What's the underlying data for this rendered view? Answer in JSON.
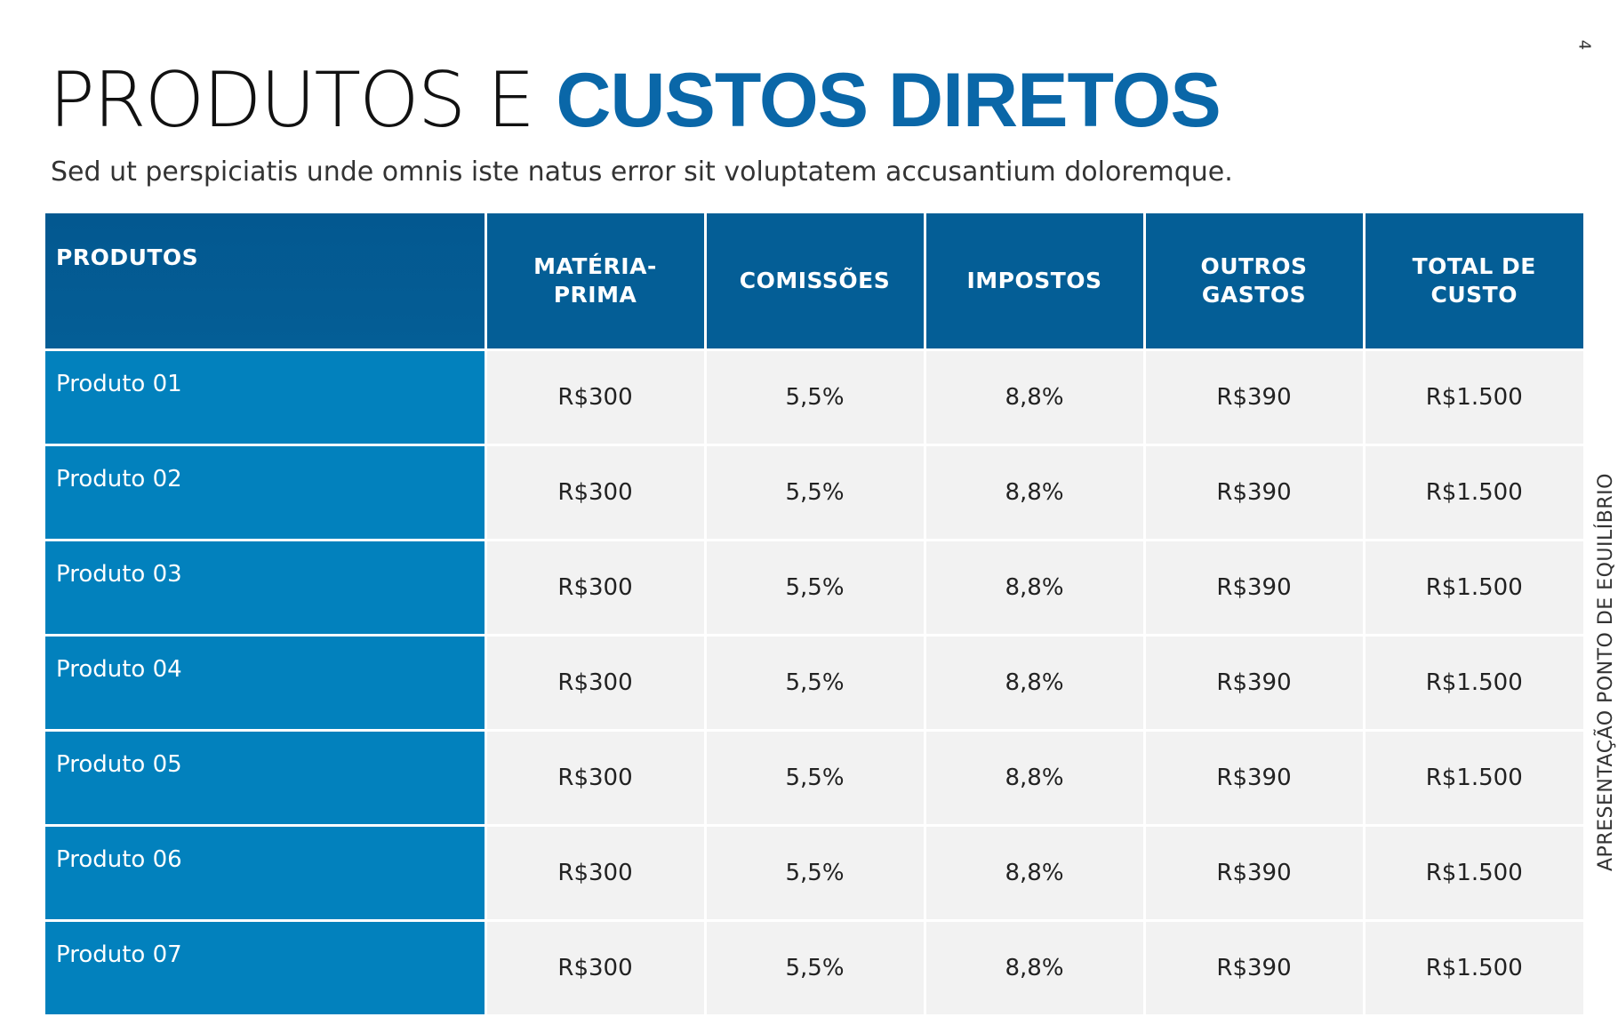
{
  "page_number": "4",
  "title": {
    "light": "PRODUTOS E ",
    "bold": "CUSTOS DIRETOS"
  },
  "subtitle": "Sed ut perspiciatis unde omnis iste natus error sit voluptatem accusantium doloremque.",
  "side_label": "APRESENTAÇÃO PONTO DE EQUILÍBRIO",
  "colors": {
    "header_bg": "#045e96",
    "product_bg": "#0281bd",
    "title_accent": "#0a67a8",
    "cell_bg": "#f2f2f2"
  },
  "table": {
    "headers": [
      "PRODUTOS",
      "MATÉRIA-PRIMA",
      "COMISSÕES",
      "IMPOSTOS",
      "OUTROS GASTOS",
      "TOTAL DE CUSTO"
    ],
    "rows": [
      [
        "Produto 01",
        "R$300",
        "5,5%",
        "8,8%",
        "R$390",
        "R$1.500"
      ],
      [
        "Produto 02",
        "R$300",
        "5,5%",
        "8,8%",
        "R$390",
        "R$1.500"
      ],
      [
        "Produto 03",
        "R$300",
        "5,5%",
        "8,8%",
        "R$390",
        "R$1.500"
      ],
      [
        "Produto 04",
        "R$300",
        "5,5%",
        "8,8%",
        "R$390",
        "R$1.500"
      ],
      [
        "Produto 05",
        "R$300",
        "5,5%",
        "8,8%",
        "R$390",
        "R$1.500"
      ],
      [
        "Produto 06",
        "R$300",
        "5,5%",
        "8,8%",
        "R$390",
        "R$1.500"
      ],
      [
        "Produto 07",
        "R$300",
        "5,5%",
        "8,8%",
        "R$390",
        "R$1.500"
      ]
    ]
  }
}
